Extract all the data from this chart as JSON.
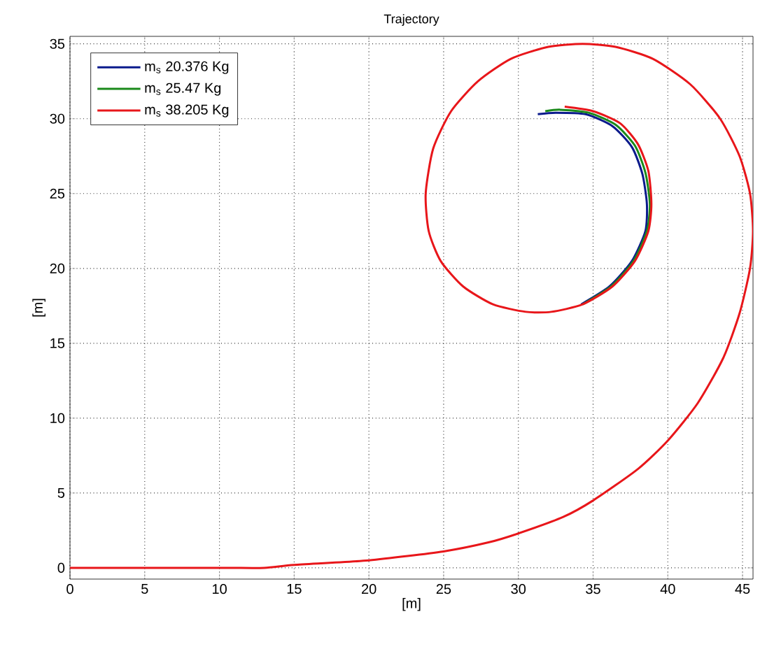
{
  "chart_data": {
    "type": "line",
    "title": "Trajectory",
    "xlabel": "[m]",
    "ylabel": "[m]",
    "xlim": [
      0,
      45.7
    ],
    "ylim": [
      -0.75,
      35.5
    ],
    "xticks": [
      0,
      5,
      10,
      15,
      20,
      25,
      30,
      35,
      40,
      45
    ],
    "yticks": [
      0,
      5,
      10,
      15,
      20,
      25,
      30,
      35
    ],
    "grid": true,
    "legend": "top left",
    "marker": "none",
    "line_style": "solid",
    "series": [
      {
        "name": "m$_{s}$ 20.376 Kg",
        "color": "#0a1a8c",
        "x": [
          34.2,
          36.1,
          37.6,
          38.5,
          38.6,
          38.3,
          37.6,
          36.3,
          34.5,
          32.5,
          31.3
        ],
        "values": [
          17.6,
          18.8,
          20.5,
          22.5,
          24.3,
          26.3,
          28.1,
          29.5,
          30.3,
          30.4,
          30.3
        ]
      },
      {
        "name": "m$_{s}$ 25.47 Kg",
        "color": "#1a8a1a",
        "x": [
          34.3,
          36.2,
          37.7,
          38.6,
          38.8,
          38.5,
          37.8,
          36.5,
          34.7,
          32.8,
          31.8
        ],
        "values": [
          17.6,
          18.8,
          20.5,
          22.5,
          24.3,
          26.4,
          28.2,
          29.6,
          30.4,
          30.6,
          30.5
        ]
      },
      {
        "name": "m$_{s}$ 38.205 Kg",
        "color": "#e8161a",
        "x": [
          0,
          10,
          13,
          15,
          20,
          25,
          28,
          30,
          33,
          35,
          38,
          40,
          42,
          43.7,
          44.8,
          45.5,
          45.7,
          45.5,
          44.8,
          43.5,
          41.5,
          39,
          36.5,
          34.3,
          32,
          29.5,
          27.3,
          25.5,
          24.3,
          23.8,
          24,
          24.8,
          26.3,
          28.3,
          30.5,
          32.2,
          34.3,
          36.3,
          37.8,
          38.7,
          38.9,
          38.7,
          38,
          36.8,
          35,
          33.1
        ],
        "values": [
          0,
          0,
          0,
          0.2,
          0.5,
          1.1,
          1.7,
          2.3,
          3.4,
          4.5,
          6.6,
          8.5,
          11,
          14,
          17,
          20,
          22.5,
          25,
          27.5,
          30,
          32.3,
          34,
          34.8,
          35,
          34.8,
          34,
          32.5,
          30.5,
          28,
          25,
          22.5,
          20.5,
          18.8,
          17.6,
          17.1,
          17.1,
          17.6,
          18.8,
          20.5,
          22.5,
          24.3,
          26.5,
          28.3,
          29.7,
          30.5,
          30.8
        ]
      }
    ]
  }
}
